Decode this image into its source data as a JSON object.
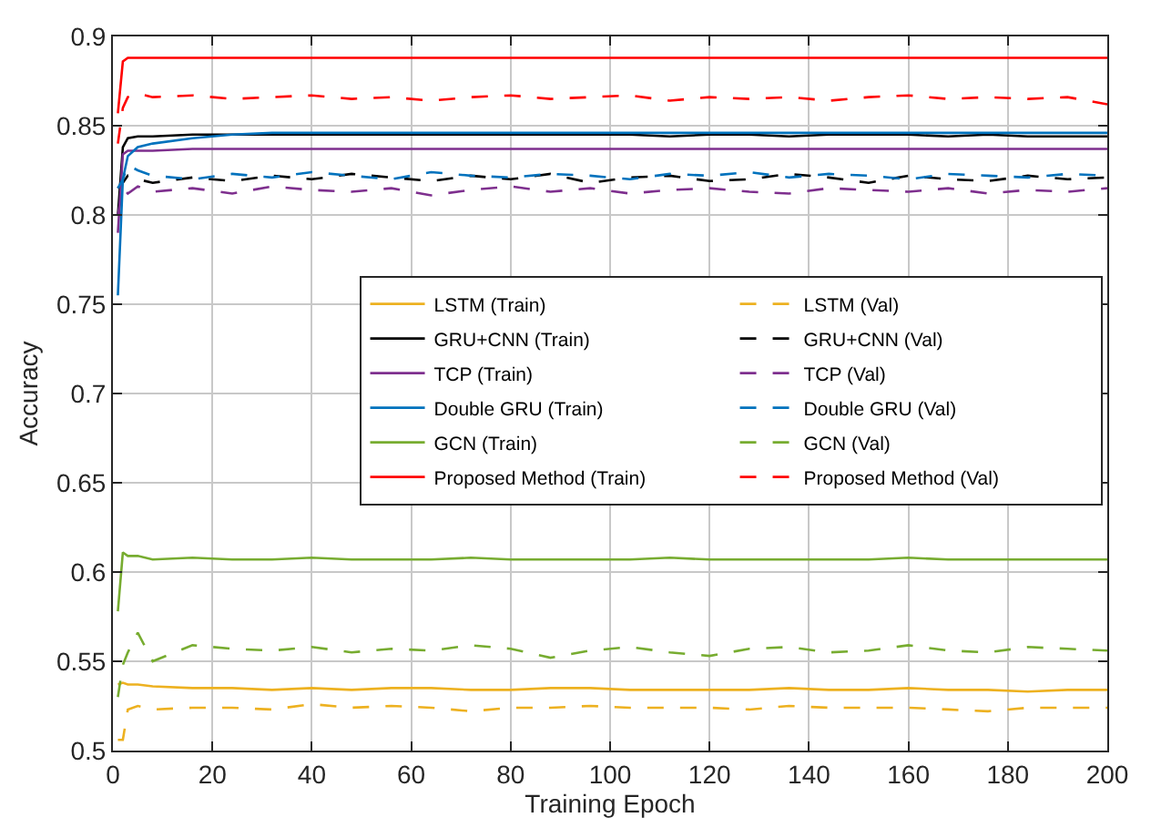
{
  "chart_data": {
    "type": "line",
    "xlabel": "Training Epoch",
    "ylabel": "Accuracy",
    "x": [
      1,
      2,
      3,
      5,
      8,
      16,
      24,
      32,
      40,
      48,
      56,
      64,
      72,
      80,
      88,
      96,
      104,
      112,
      120,
      128,
      136,
      144,
      152,
      160,
      168,
      176,
      184,
      192,
      200
    ],
    "xlim": [
      0,
      200
    ],
    "xticks": [
      0,
      20,
      40,
      60,
      80,
      100,
      120,
      140,
      160,
      180,
      200
    ],
    "ylim": [
      0.5,
      0.9
    ],
    "yticks": [
      0.5,
      0.55,
      0.6,
      0.65,
      0.7,
      0.75,
      0.8,
      0.85,
      0.9
    ],
    "grid": true,
    "legend": "right",
    "marker": "none",
    "series": [
      {
        "name": "LSTM (Train)",
        "color": "#edb120",
        "line_style": "solid",
        "values": [
          0.537,
          0.538,
          0.537,
          0.537,
          0.536,
          0.535,
          0.535,
          0.534,
          0.535,
          0.534,
          0.535,
          0.535,
          0.534,
          0.534,
          0.535,
          0.535,
          0.534,
          0.534,
          0.534,
          0.534,
          0.535,
          0.534,
          0.534,
          0.535,
          0.534,
          0.534,
          0.533,
          0.534,
          0.534
        ]
      },
      {
        "name": "LSTM (Val)",
        "color": "#edb120",
        "line_style": "dashed",
        "values": [
          0.506,
          0.506,
          0.523,
          0.525,
          0.523,
          0.524,
          0.524,
          0.523,
          0.526,
          0.524,
          0.525,
          0.524,
          0.522,
          0.524,
          0.524,
          0.525,
          0.524,
          0.524,
          0.524,
          0.523,
          0.525,
          0.524,
          0.524,
          0.524,
          0.523,
          0.522,
          0.524,
          0.524,
          0.524
        ]
      },
      {
        "name": "GRU+CNN (Train)",
        "color": "#000000",
        "line_style": "solid",
        "values": [
          0.8,
          0.838,
          0.843,
          0.844,
          0.844,
          0.845,
          0.845,
          0.845,
          0.845,
          0.845,
          0.845,
          0.845,
          0.845,
          0.845,
          0.845,
          0.845,
          0.845,
          0.844,
          0.845,
          0.845,
          0.844,
          0.845,
          0.845,
          0.845,
          0.844,
          0.845,
          0.844,
          0.844,
          0.844
        ]
      },
      {
        "name": "GRU+CNN (Val)",
        "color": "#000000",
        "line_style": "dashed",
        "values": [
          0.815,
          0.818,
          0.822,
          0.82,
          0.818,
          0.821,
          0.819,
          0.822,
          0.82,
          0.823,
          0.821,
          0.819,
          0.822,
          0.82,
          0.823,
          0.818,
          0.821,
          0.822,
          0.819,
          0.82,
          0.823,
          0.821,
          0.818,
          0.822,
          0.82,
          0.819,
          0.822,
          0.82,
          0.821
        ]
      },
      {
        "name": "TCP (Train)",
        "color": "#7e2f8e",
        "line_style": "solid",
        "values": [
          0.79,
          0.834,
          0.836,
          0.836,
          0.836,
          0.837,
          0.837,
          0.837,
          0.837,
          0.837,
          0.837,
          0.837,
          0.837,
          0.837,
          0.837,
          0.837,
          0.837,
          0.837,
          0.837,
          0.837,
          0.837,
          0.837,
          0.837,
          0.837,
          0.837,
          0.837,
          0.837,
          0.837,
          0.837
        ]
      },
      {
        "name": "TCP (Val)",
        "color": "#7e2f8e",
        "line_style": "dashed",
        "values": [
          0.8,
          0.815,
          0.812,
          0.816,
          0.813,
          0.815,
          0.812,
          0.816,
          0.814,
          0.813,
          0.815,
          0.811,
          0.814,
          0.816,
          0.813,
          0.815,
          0.812,
          0.814,
          0.815,
          0.813,
          0.812,
          0.815,
          0.814,
          0.813,
          0.815,
          0.812,
          0.814,
          0.813,
          0.815
        ]
      },
      {
        "name": "Double GRU (Train)",
        "color": "#0072bd",
        "line_style": "solid",
        "values": [
          0.755,
          0.82,
          0.833,
          0.838,
          0.84,
          0.843,
          0.845,
          0.846,
          0.846,
          0.846,
          0.846,
          0.846,
          0.846,
          0.846,
          0.846,
          0.846,
          0.846,
          0.846,
          0.846,
          0.846,
          0.846,
          0.846,
          0.846,
          0.846,
          0.846,
          0.846,
          0.846,
          0.846,
          0.846
        ]
      },
      {
        "name": "Double GRU (Val)",
        "color": "#0072bd",
        "line_style": "dashed",
        "values": [
          0.815,
          0.82,
          0.828,
          0.825,
          0.822,
          0.82,
          0.823,
          0.821,
          0.824,
          0.822,
          0.82,
          0.824,
          0.822,
          0.821,
          0.823,
          0.822,
          0.82,
          0.823,
          0.822,
          0.824,
          0.821,
          0.823,
          0.822,
          0.82,
          0.823,
          0.822,
          0.821,
          0.823,
          0.822
        ]
      },
      {
        "name": "GCN (Train)",
        "color": "#77ac30",
        "line_style": "solid",
        "values": [
          0.578,
          0.611,
          0.609,
          0.609,
          0.607,
          0.608,
          0.607,
          0.607,
          0.608,
          0.607,
          0.607,
          0.607,
          0.608,
          0.607,
          0.607,
          0.607,
          0.607,
          0.608,
          0.607,
          0.607,
          0.607,
          0.607,
          0.607,
          0.608,
          0.607,
          0.607,
          0.607,
          0.607,
          0.607
        ]
      },
      {
        "name": "GCN (Val)",
        "color": "#77ac30",
        "line_style": "dashed",
        "values": [
          0.53,
          0.548,
          0.555,
          0.566,
          0.55,
          0.559,
          0.557,
          0.556,
          0.558,
          0.555,
          0.557,
          0.556,
          0.559,
          0.557,
          0.552,
          0.556,
          0.558,
          0.555,
          0.553,
          0.557,
          0.558,
          0.555,
          0.556,
          0.559,
          0.556,
          0.555,
          0.558,
          0.557,
          0.556
        ]
      },
      {
        "name": "Proposed Method (Train)",
        "color": "#ff0000",
        "line_style": "solid",
        "values": [
          0.857,
          0.886,
          0.888,
          0.888,
          0.888,
          0.888,
          0.888,
          0.888,
          0.888,
          0.888,
          0.888,
          0.888,
          0.888,
          0.888,
          0.888,
          0.888,
          0.888,
          0.888,
          0.888,
          0.888,
          0.888,
          0.888,
          0.888,
          0.888,
          0.888,
          0.888,
          0.888,
          0.888,
          0.888
        ]
      },
      {
        "name": "Proposed Method (Val)",
        "color": "#ff0000",
        "line_style": "dashed",
        "values": [
          0.84,
          0.86,
          0.866,
          0.868,
          0.866,
          0.867,
          0.865,
          0.866,
          0.867,
          0.865,
          0.866,
          0.864,
          0.866,
          0.867,
          0.865,
          0.866,
          0.867,
          0.864,
          0.866,
          0.865,
          0.866,
          0.864,
          0.866,
          0.867,
          0.865,
          0.866,
          0.865,
          0.866,
          0.862
        ]
      }
    ]
  }
}
